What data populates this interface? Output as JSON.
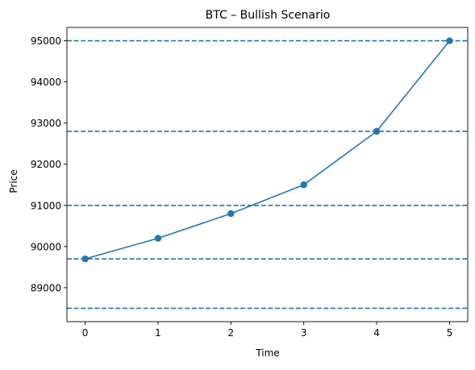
{
  "chart_data": {
    "type": "line",
    "title": "BTC – Bullish Scenario",
    "xlabel": "Time",
    "ylabel": "Price",
    "x": [
      0,
      1,
      2,
      3,
      4,
      5
    ],
    "series": [
      {
        "values": [
          89700,
          90200,
          90800,
          91500,
          92800,
          95000
        ],
        "color": "#1f77b4",
        "marker": "circle"
      }
    ],
    "hlines": [
      {
        "y": 95000,
        "style": "dashed",
        "color": "#1f77b4"
      },
      {
        "y": 92800,
        "style": "dashed",
        "color": "#1f77b4"
      },
      {
        "y": 91000,
        "style": "dashed",
        "color": "#1f77b4"
      },
      {
        "y": 89700,
        "style": "dashed",
        "color": "#1f77b4"
      },
      {
        "y": 88500,
        "style": "dashed",
        "color": "#1f77b4"
      }
    ],
    "xticks": [
      0,
      1,
      2,
      3,
      4,
      5
    ],
    "yticks": [
      89000,
      90000,
      91000,
      92000,
      93000,
      94000,
      95000
    ],
    "xlim": [
      -0.25,
      5.25
    ],
    "ylim": [
      88175,
      95325
    ],
    "grid": false
  }
}
